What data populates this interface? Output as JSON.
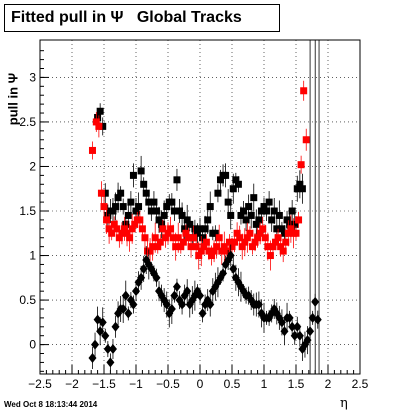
{
  "title": "Fitted pull in Ψ   Global Tracks",
  "timestamp": "Wed Oct  8 18:13:44 2014",
  "chart_data": {
    "type": "scatter",
    "title": "Fitted pull in Ψ   Global Tracks",
    "xlabel": "η",
    "ylabel": "pull in Ψ",
    "xlim": [
      -2.5,
      2.5
    ],
    "ylim": [
      -0.33,
      3.42
    ],
    "xticks": [
      -2.5,
      -2,
      -1.5,
      -1,
      -0.5,
      0,
      0.5,
      1,
      1.5,
      2,
      2.5
    ],
    "yticks": [
      0,
      0.5,
      1,
      1.5,
      2,
      2.5,
      3
    ],
    "xtick_labels": [
      "−2.5",
      "−2",
      "−1.5",
      "−1",
      "−0.5",
      "0",
      "0.5",
      "1",
      "1.5",
      "2",
      "2.5"
    ],
    "ytick_labels": [
      "0",
      "0.5",
      "1",
      "1.5",
      "2",
      "2.5",
      "3"
    ],
    "grid": true,
    "series": [
      {
        "marker": "square",
        "color": "#000000",
        "x": [
          -1.6,
          -1.56,
          -1.52,
          -1.48,
          -1.44,
          -1.4,
          -1.36,
          -1.32,
          -1.28,
          -1.24,
          -1.2,
          -1.16,
          -1.12,
          -1.08,
          -1.04,
          -1.0,
          -0.96,
          -0.92,
          -0.88,
          -0.84,
          -0.8,
          -0.76,
          -0.72,
          -0.68,
          -0.64,
          -0.6,
          -0.56,
          -0.52,
          -0.48,
          -0.44,
          -0.4,
          -0.36,
          -0.32,
          -0.28,
          -0.24,
          -0.2,
          -0.16,
          -0.12,
          -0.08,
          -0.04,
          0.0,
          0.04,
          0.08,
          0.12,
          0.16,
          0.2,
          0.24,
          0.28,
          0.32,
          0.36,
          0.4,
          0.44,
          0.48,
          0.52,
          0.56,
          0.6,
          0.64,
          0.68,
          0.72,
          0.76,
          0.8,
          0.84,
          0.88,
          0.92,
          0.96,
          1.0,
          1.04,
          1.08,
          1.12,
          1.16,
          1.2,
          1.24,
          1.28,
          1.32,
          1.36,
          1.4,
          1.44,
          1.48,
          1.52,
          1.56,
          1.6
        ],
        "y": [
          2.55,
          2.62,
          2.45,
          1.7,
          1.45,
          1.5,
          1.5,
          1.55,
          1.65,
          1.7,
          1.55,
          1.35,
          1.45,
          1.6,
          1.9,
          1.5,
          1.55,
          1.95,
          1.8,
          1.7,
          1.6,
          1.5,
          1.6,
          1.5,
          1.4,
          1.35,
          1.45,
          1.55,
          1.6,
          1.6,
          1.5,
          1.85,
          1.5,
          1.45,
          1.3,
          1.4,
          1.35,
          1.2,
          1.3,
          1.25,
          1.3,
          1.2,
          1.3,
          1.4,
          1.55,
          1.25,
          1.25,
          1.7,
          1.85,
          1.9,
          1.9,
          1.6,
          1.45,
          1.75,
          1.85,
          1.8,
          1.45,
          1.5,
          1.4,
          1.55,
          1.45,
          1.65,
          1.35,
          1.4,
          1.5,
          1.55,
          1.5,
          1.6,
          1.4,
          1.5,
          1.3,
          1.45,
          1.3,
          1.25,
          1.4,
          1.35,
          1.5,
          1.35,
          1.75,
          1.8,
          1.75
        ]
      },
      {
        "marker": "square",
        "color": "#ff0000",
        "x": [
          -1.68,
          -1.62,
          -1.58,
          -1.54,
          -1.5,
          -1.46,
          -1.42,
          -1.38,
          -1.34,
          -1.3,
          -1.26,
          -1.22,
          -1.18,
          -1.14,
          -1.1,
          -1.06,
          -1.02,
          -0.98,
          -0.94,
          -0.9,
          -0.86,
          -0.82,
          -0.78,
          -0.74,
          -0.7,
          -0.66,
          -0.62,
          -0.58,
          -0.54,
          -0.5,
          -0.46,
          -0.42,
          -0.38,
          -0.34,
          -0.3,
          -0.26,
          -0.22,
          -0.18,
          -0.14,
          -0.1,
          -0.06,
          -0.02,
          0.02,
          0.06,
          0.1,
          0.14,
          0.18,
          0.22,
          0.26,
          0.3,
          0.34,
          0.38,
          0.42,
          0.46,
          0.5,
          0.54,
          0.58,
          0.62,
          0.66,
          0.7,
          0.74,
          0.78,
          0.82,
          0.86,
          0.9,
          0.94,
          0.98,
          1.02,
          1.06,
          1.1,
          1.14,
          1.18,
          1.22,
          1.26,
          1.3,
          1.34,
          1.38,
          1.42,
          1.46,
          1.5,
          1.54,
          1.58,
          1.62,
          1.66
        ],
        "y": [
          2.18,
          2.5,
          2.45,
          1.7,
          1.55,
          1.4,
          1.3,
          1.25,
          1.35,
          1.3,
          1.2,
          1.25,
          1.3,
          1.25,
          1.2,
          1.3,
          1.35,
          1.4,
          1.4,
          1.3,
          1.2,
          1.05,
          1.05,
          1.1,
          1.2,
          1.1,
          1.15,
          1.3,
          1.2,
          1.25,
          1.3,
          1.2,
          1.1,
          1.2,
          1.1,
          1.15,
          1.25,
          1.2,
          1.1,
          1.2,
          1.1,
          1.0,
          1.05,
          1.1,
          1.15,
          1.05,
          1.0,
          1.05,
          1.1,
          1.2,
          1.05,
          1.1,
          1.05,
          1.15,
          1.1,
          1.15,
          1.25,
          1.2,
          1.1,
          1.15,
          1.2,
          1.25,
          1.1,
          1.15,
          1.2,
          1.25,
          1.3,
          1.2,
          1.1,
          1.0,
          1.1,
          1.15,
          1.2,
          1.1,
          1.05,
          1.15,
          1.25,
          1.3,
          1.25,
          1.25,
          1.4,
          2.02,
          2.85,
          2.3
        ]
      },
      {
        "marker": "diamond",
        "color": "#000000",
        "x": [
          -1.68,
          -1.64,
          -1.6,
          -1.56,
          -1.52,
          -1.48,
          -1.44,
          -1.4,
          -1.36,
          -1.32,
          -1.28,
          -1.24,
          -1.2,
          -1.16,
          -1.12,
          -1.08,
          -1.04,
          -1.0,
          -0.96,
          -0.92,
          -0.88,
          -0.84,
          -0.8,
          -0.76,
          -0.72,
          -0.68,
          -0.64,
          -0.6,
          -0.56,
          -0.52,
          -0.48,
          -0.44,
          -0.4,
          -0.36,
          -0.32,
          -0.28,
          -0.24,
          -0.2,
          -0.16,
          -0.12,
          -0.08,
          -0.04,
          0.0,
          0.04,
          0.08,
          0.12,
          0.16,
          0.2,
          0.24,
          0.28,
          0.32,
          0.36,
          0.4,
          0.44,
          0.48,
          0.52,
          0.56,
          0.6,
          0.64,
          0.68,
          0.72,
          0.76,
          0.8,
          0.84,
          0.88,
          0.92,
          0.96,
          1.0,
          1.04,
          1.08,
          1.12,
          1.16,
          1.2,
          1.24,
          1.28,
          1.32,
          1.36,
          1.4,
          1.44,
          1.48,
          1.52,
          1.56,
          1.6,
          1.64,
          1.68,
          1.72,
          1.76,
          1.8,
          1.84
        ],
        "y": [
          -0.15,
          0.0,
          0.28,
          0.15,
          0.25,
          0.1,
          -0.05,
          -0.2,
          -0.05,
          0.2,
          0.35,
          0.4,
          0.4,
          0.55,
          0.35,
          0.5,
          0.45,
          0.6,
          0.7,
          0.75,
          0.85,
          0.95,
          0.9,
          0.85,
          0.8,
          0.75,
          0.6,
          0.55,
          0.5,
          0.45,
          0.35,
          0.4,
          0.55,
          0.65,
          0.5,
          0.45,
          0.55,
          0.6,
          0.45,
          0.5,
          0.55,
          0.6,
          0.55,
          0.35,
          0.45,
          0.5,
          0.45,
          0.6,
          0.65,
          0.7,
          0.75,
          0.8,
          0.9,
          0.95,
          1.0,
          0.85,
          0.75,
          0.7,
          0.65,
          0.6,
          0.55,
          0.55,
          0.5,
          0.45,
          0.45,
          0.45,
          0.35,
          0.3,
          0.3,
          0.3,
          0.35,
          0.4,
          0.35,
          0.3,
          0.25,
          0.15,
          0.3,
          0.3,
          0.2,
          0.1,
          0.2,
          0.1,
          -0.05,
          0.0,
          0.05,
          0.15,
          0.3,
          0.48,
          0.28
        ]
      }
    ]
  }
}
